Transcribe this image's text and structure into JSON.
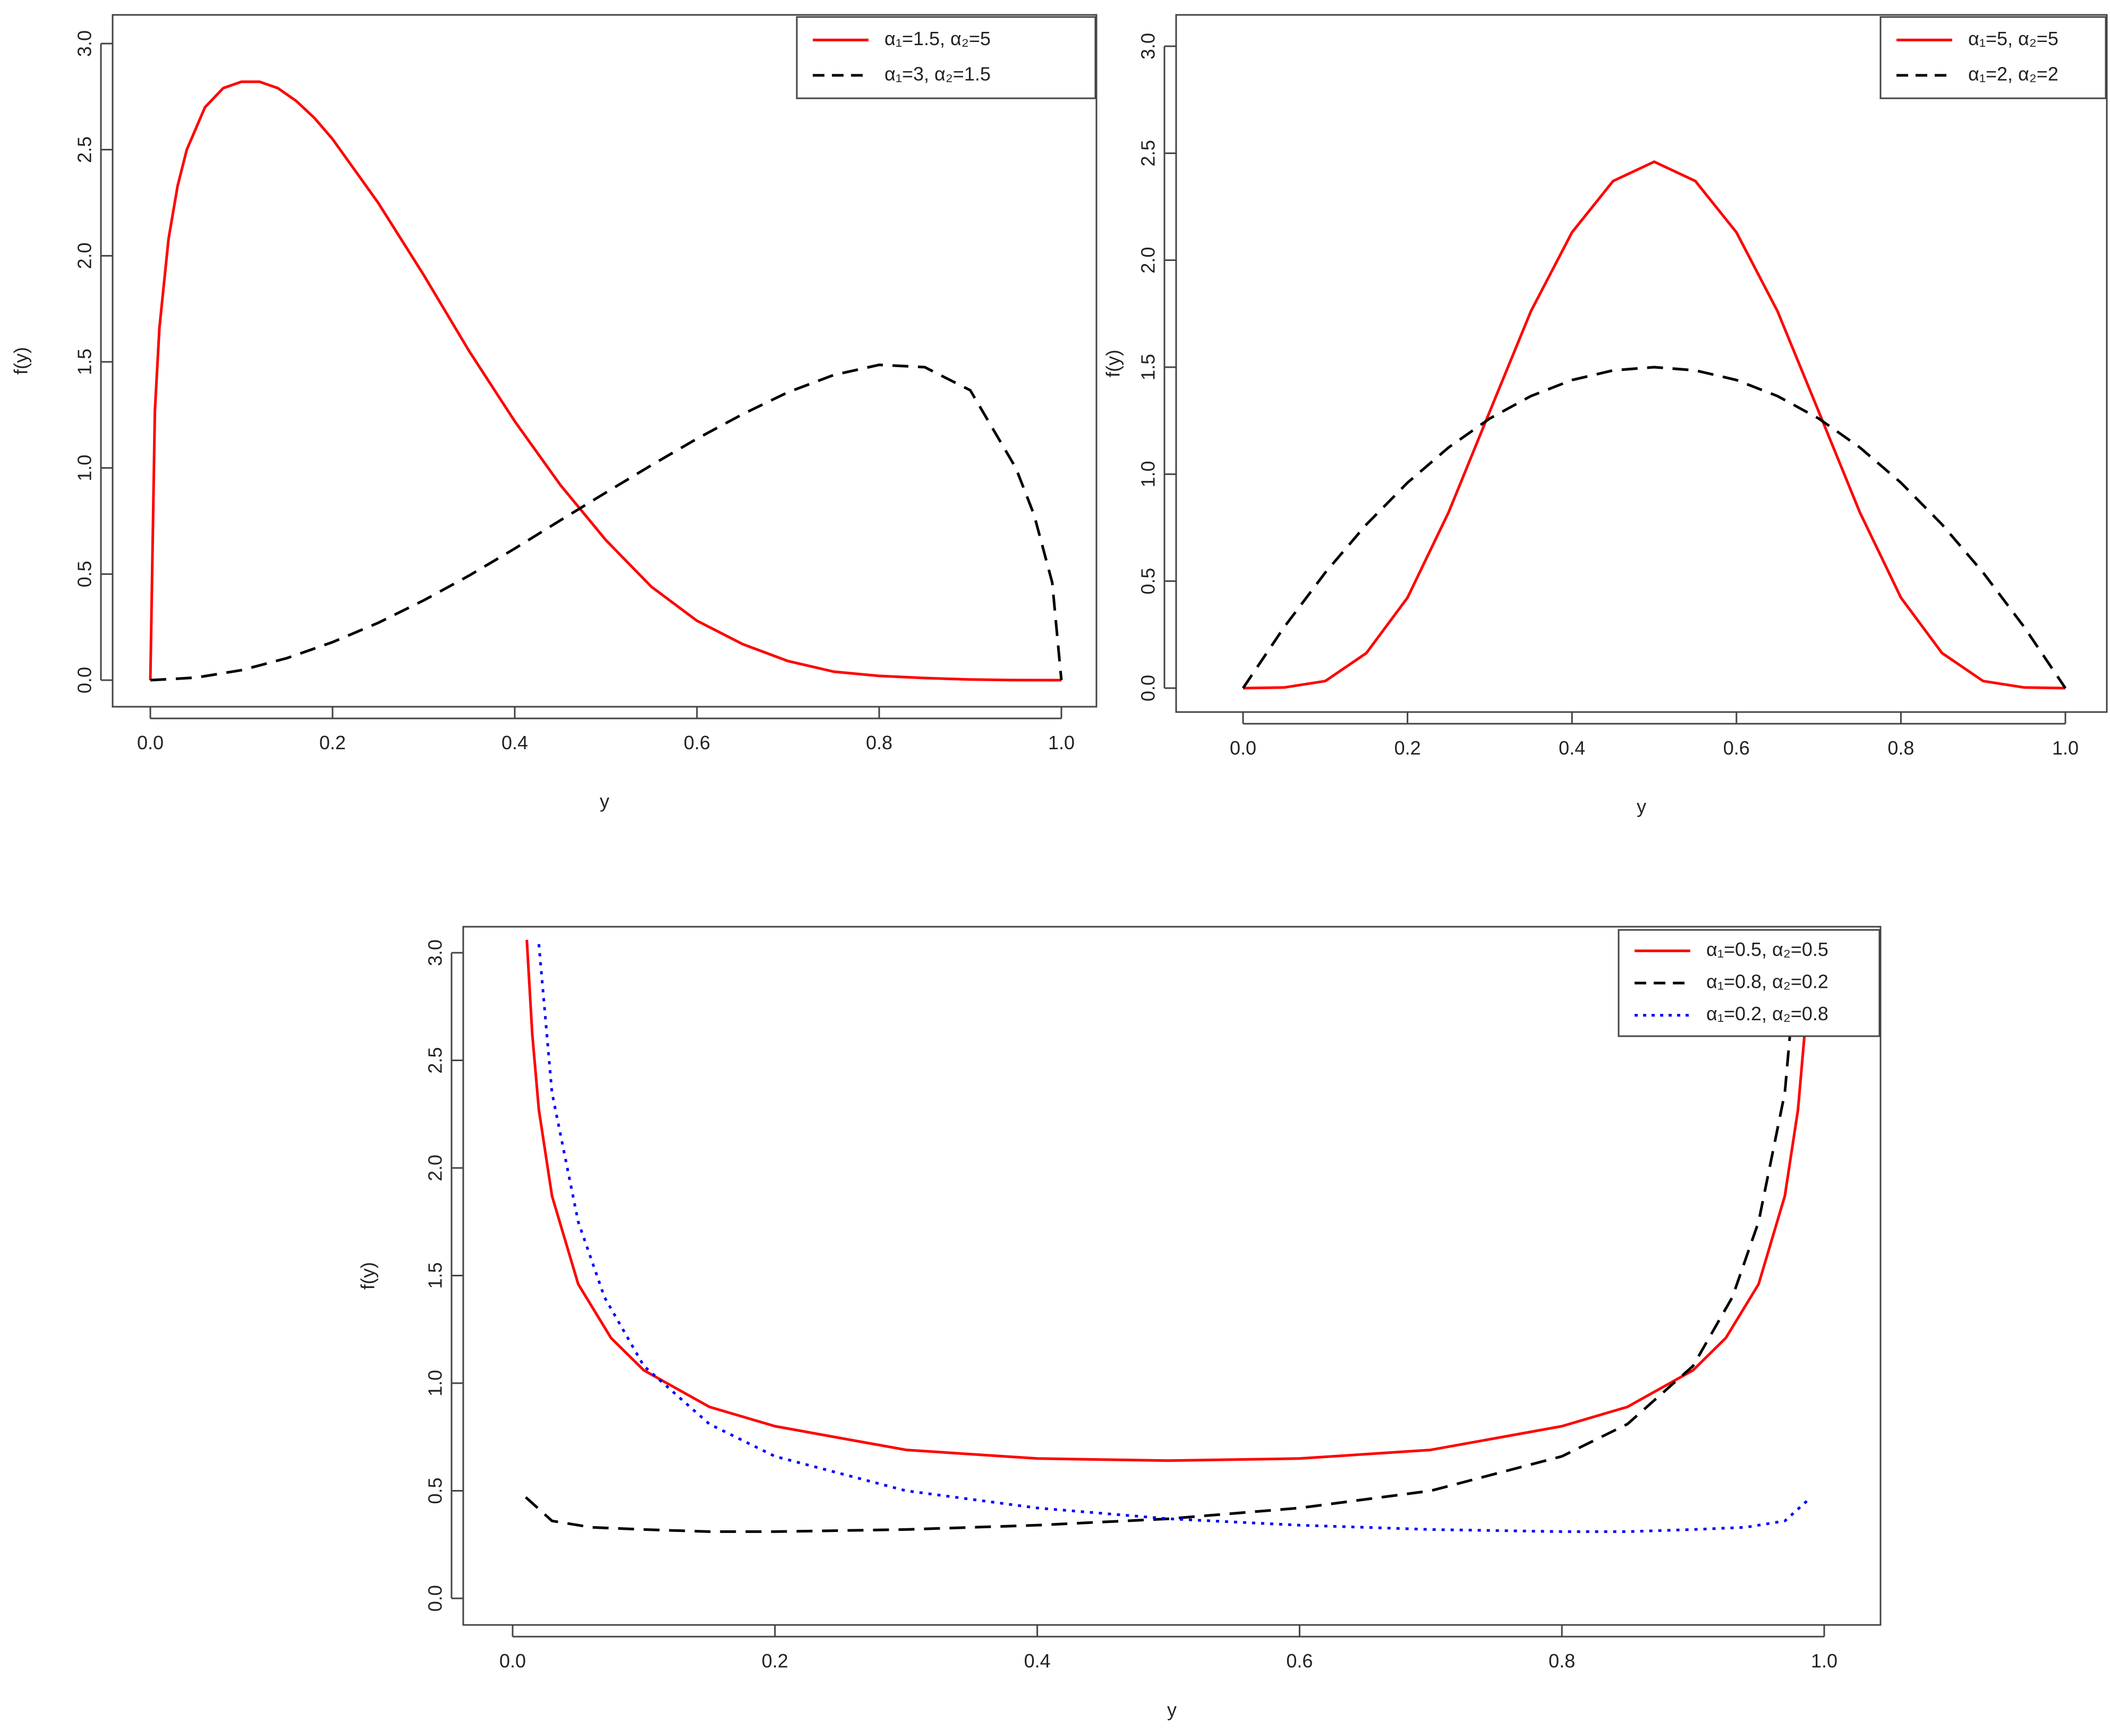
{
  "chart_data": [
    {
      "type": "line",
      "xlabel": "y",
      "ylabel": "f(y)",
      "xlim": [
        0,
        1
      ],
      "ylim": [
        0,
        3
      ],
      "xticks": [
        "0.0",
        "0.2",
        "0.4",
        "0.6",
        "0.8",
        "1.0"
      ],
      "yticks": [
        "0.0",
        "0.5",
        "1.0",
        "1.5",
        "2.0",
        "2.5",
        "3.0"
      ],
      "legend_position": "top-right",
      "series": [
        {
          "name": "α₁=1.5, α₂=5",
          "color": "#ff0000",
          "dash": "solid",
          "x": [
            0,
            0.005,
            0.01,
            0.02,
            0.03,
            0.04,
            0.06,
            0.08,
            0.1,
            0.12,
            0.14,
            0.16,
            0.18,
            0.2,
            0.25,
            0.3,
            0.35,
            0.4,
            0.45,
            0.5,
            0.55,
            0.6,
            0.65,
            0.7,
            0.75,
            0.8,
            0.85,
            0.9,
            0.95,
            1
          ],
          "y": [
            0,
            1.27,
            1.66,
            2.08,
            2.33,
            2.5,
            2.7,
            2.79,
            2.82,
            2.82,
            2.79,
            2.73,
            2.65,
            2.55,
            2.25,
            1.91,
            1.55,
            1.22,
            0.92,
            0.66,
            0.44,
            0.28,
            0.17,
            0.09,
            0.04,
            0.02,
            0.01,
            0.003,
            0.0002,
            0
          ]
        },
        {
          "name": "α₁=3, α₂=1.5",
          "color": "#000000",
          "dash": "dashed",
          "x": [
            0,
            0.05,
            0.1,
            0.15,
            0.2,
            0.25,
            0.3,
            0.35,
            0.4,
            0.45,
            0.5,
            0.55,
            0.6,
            0.65,
            0.7,
            0.75,
            0.8,
            0.85,
            0.9,
            0.95,
            0.97,
            0.99,
            1
          ],
          "y": [
            0,
            0.012,
            0.047,
            0.104,
            0.179,
            0.27,
            0.376,
            0.493,
            0.62,
            0.753,
            0.884,
            1.013,
            1.138,
            1.253,
            1.357,
            1.438,
            1.486,
            1.475,
            1.366,
            1.0,
            0.78,
            0.46,
            0
          ]
        }
      ]
    },
    {
      "type": "line",
      "xlabel": "y",
      "ylabel": "f(y)",
      "xlim": [
        0,
        1
      ],
      "ylim": [
        0,
        3
      ],
      "xticks": [
        "0.0",
        "0.2",
        "0.4",
        "0.6",
        "0.8",
        "1.0"
      ],
      "yticks": [
        "0.0",
        "0.5",
        "1.0",
        "1.5",
        "2.0",
        "2.5",
        "3.0"
      ],
      "legend_position": "top-right",
      "series": [
        {
          "name": "α₁=5, α₂=5",
          "color": "#ff0000",
          "dash": "solid",
          "x": [
            0,
            0.05,
            0.1,
            0.15,
            0.2,
            0.25,
            0.3,
            0.35,
            0.4,
            0.45,
            0.5,
            0.55,
            0.6,
            0.65,
            0.7,
            0.75,
            0.8,
            0.85,
            0.9,
            0.95,
            1
          ],
          "y": [
            0,
            0.003,
            0.033,
            0.164,
            0.423,
            0.822,
            1.293,
            1.761,
            2.13,
            2.37,
            2.46,
            2.37,
            2.13,
            1.761,
            1.293,
            0.822,
            0.423,
            0.164,
            0.033,
            0.003,
            0
          ]
        },
        {
          "name": "α₁=2, α₂=2",
          "color": "#000000",
          "dash": "dashed",
          "x": [
            0,
            0.05,
            0.1,
            0.15,
            0.2,
            0.25,
            0.3,
            0.35,
            0.4,
            0.45,
            0.5,
            0.55,
            0.6,
            0.65,
            0.7,
            0.75,
            0.8,
            0.85,
            0.9,
            0.95,
            1
          ],
          "y": [
            0,
            0.285,
            0.54,
            0.765,
            0.96,
            1.125,
            1.26,
            1.365,
            1.44,
            1.485,
            1.5,
            1.485,
            1.44,
            1.365,
            1.26,
            1.125,
            0.96,
            0.765,
            0.54,
            0.285,
            0
          ]
        }
      ]
    },
    {
      "type": "line",
      "xlabel": "y",
      "ylabel": "f(y)",
      "xlim": [
        0,
        1
      ],
      "ylim": [
        0,
        3
      ],
      "xticks": [
        "0.0",
        "0.2",
        "0.4",
        "0.6",
        "0.8",
        "1.0"
      ],
      "yticks": [
        "0.0",
        "0.5",
        "1.0",
        "1.5",
        "2.0",
        "2.5",
        "3.0"
      ],
      "legend_position": "top-right",
      "series": [
        {
          "name": "α₁=0.5, α₂=0.5",
          "color": "#ff0000",
          "dash": "solid",
          "x": [
            0.0108,
            0.015,
            0.02,
            0.03,
            0.05,
            0.075,
            0.1,
            0.15,
            0.2,
            0.3,
            0.4,
            0.5,
            0.6,
            0.7,
            0.8,
            0.85,
            0.9,
            0.925,
            0.95,
            0.97,
            0.98,
            0.985,
            0.9892
          ],
          "y": [
            3.06,
            2.62,
            2.27,
            1.87,
            1.46,
            1.21,
            1.06,
            0.89,
            0.8,
            0.69,
            0.65,
            0.64,
            0.65,
            0.69,
            0.8,
            0.89,
            1.06,
            1.21,
            1.46,
            1.87,
            2.27,
            2.62,
            3.06
          ]
        },
        {
          "name": "α₁=0.8, α₂=0.2",
          "color": "#000000",
          "dash": "dashed",
          "x": [
            0.01,
            0.03,
            0.06,
            0.1,
            0.15,
            0.2,
            0.3,
            0.4,
            0.5,
            0.6,
            0.7,
            0.8,
            0.85,
            0.9,
            0.93,
            0.95,
            0.97,
            0.98
          ],
          "y": [
            0.47,
            0.36,
            0.33,
            0.32,
            0.31,
            0.31,
            0.32,
            0.34,
            0.37,
            0.42,
            0.5,
            0.66,
            0.81,
            1.08,
            1.4,
            1.75,
            2.35,
            3.04
          ]
        },
        {
          "name": "α₁=0.2, α₂=0.8",
          "color": "#0000ff",
          "dash": "dotted",
          "x": [
            0.02,
            0.03,
            0.05,
            0.07,
            0.1,
            0.15,
            0.2,
            0.3,
            0.4,
            0.5,
            0.6,
            0.7,
            0.8,
            0.85,
            0.9,
            0.94,
            0.97,
            0.99
          ],
          "y": [
            3.04,
            2.35,
            1.75,
            1.4,
            1.08,
            0.81,
            0.66,
            0.5,
            0.42,
            0.37,
            0.34,
            0.32,
            0.31,
            0.31,
            0.32,
            0.33,
            0.36,
            0.47
          ]
        }
      ]
    }
  ]
}
